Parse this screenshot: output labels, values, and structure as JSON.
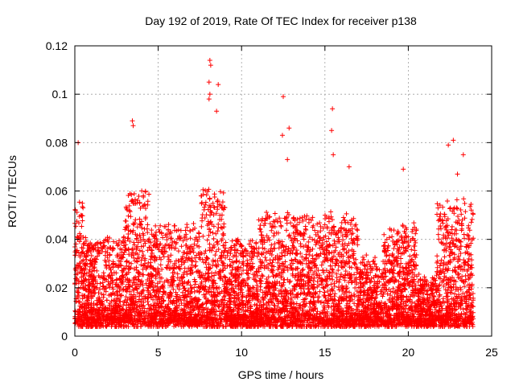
{
  "chart_data": {
    "type": "scatter",
    "title": "Day 192 of 2019, Rate Of TEC Index for receiver p138",
    "xlabel": "GPS time / hours",
    "ylabel": "ROTI / TECUs",
    "xlim": [
      0,
      25
    ],
    "ylim": [
      0,
      0.12
    ],
    "x_ticks": [
      0,
      5,
      10,
      15,
      20,
      25
    ],
    "x_tick_labels": [
      "0",
      "5",
      "10",
      "15",
      "20",
      "25"
    ],
    "y_ticks": [
      0,
      0.02,
      0.04,
      0.06,
      0.08,
      0.1,
      0.12
    ],
    "y_tick_labels": [
      "0",
      "0.02",
      "0.04",
      "0.06",
      "0.08",
      "0.1",
      "0.12"
    ],
    "grid": true,
    "marker": "+",
    "color": "#ff0000",
    "series": [
      {
        "name": "ROTI",
        "x_range": [
          0,
          23.9
        ],
        "typical_range": [
          0.005,
          0.04
        ],
        "notable_points": [
          {
            "x": 0.2,
            "y": 0.08
          },
          {
            "x": 3.45,
            "y": 0.089
          },
          {
            "x": 3.5,
            "y": 0.087
          },
          {
            "x": 8.1,
            "y": 0.114
          },
          {
            "x": 8.15,
            "y": 0.112
          },
          {
            "x": 8.05,
            "y": 0.105
          },
          {
            "x": 8.1,
            "y": 0.1
          },
          {
            "x": 8.6,
            "y": 0.104
          },
          {
            "x": 8.5,
            "y": 0.093
          },
          {
            "x": 8.05,
            "y": 0.098
          },
          {
            "x": 12.5,
            "y": 0.099
          },
          {
            "x": 12.85,
            "y": 0.086
          },
          {
            "x": 12.45,
            "y": 0.083
          },
          {
            "x": 12.75,
            "y": 0.073
          },
          {
            "x": 15.45,
            "y": 0.094
          },
          {
            "x": 15.4,
            "y": 0.085
          },
          {
            "x": 15.5,
            "y": 0.075
          },
          {
            "x": 16.45,
            "y": 0.07
          },
          {
            "x": 19.7,
            "y": 0.069
          },
          {
            "x": 22.7,
            "y": 0.081
          },
          {
            "x": 22.4,
            "y": 0.079
          },
          {
            "x": 23.3,
            "y": 0.075
          },
          {
            "x": 22.95,
            "y": 0.067
          }
        ]
      }
    ]
  }
}
